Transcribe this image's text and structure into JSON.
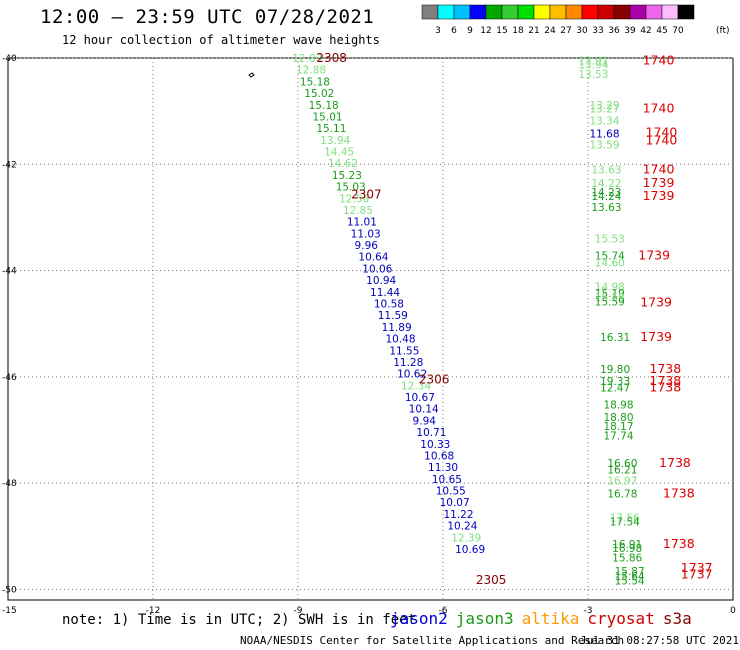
{
  "header": {
    "title": "12:00 – 23:59 UTC 07/28/2021",
    "subtitle": "12 hour collection of altimeter wave heights"
  },
  "legend": {
    "colors": [
      "#7f7f7f",
      "#00ffff",
      "#00bfff",
      "#0000ff",
      "#00a800",
      "#33cc33",
      "#00e000",
      "#ffff00",
      "#ffbf00",
      "#ff8800",
      "#ff0000",
      "#cc0000",
      "#880000",
      "#aa00aa",
      "#ee66ee",
      "#ffbbff",
      "#000000"
    ],
    "labels": [
      "3",
      "6",
      "9",
      "12",
      "15",
      "18",
      "21",
      "24",
      "27",
      "30",
      "33",
      "36",
      "39",
      "42",
      "45",
      "70"
    ],
    "unit": "(ft)"
  },
  "axes": {
    "lat_labels": [
      "-40",
      "-42",
      "-44",
      "-46",
      "-48",
      "-50"
    ],
    "bottom_corner": "-15",
    "lon_labels": [
      "-12",
      "-9",
      "-6",
      "-3",
      "0"
    ]
  },
  "tracks": {
    "west": {
      "time_labels": [
        {
          "text": "2308",
          "lat": -40.0
        },
        {
          "text": "2307",
          "lat": -42.57
        },
        {
          "text": "2306",
          "lat": -46.05
        },
        {
          "text": "2305",
          "lat": -49.82
        }
      ],
      "points": [
        {
          "v": "12.83",
          "lon": -9.12,
          "lat": -40.0,
          "c": "#7fdf7f"
        },
        {
          "v": "12.88",
          "lon": -9.04,
          "lat": -40.22,
          "c": "#7fdf7f"
        },
        {
          "v": "15.18",
          "lon": -8.96,
          "lat": -40.44,
          "c": "#1a9c1a"
        },
        {
          "v": "15.02",
          "lon": -8.87,
          "lat": -40.66,
          "c": "#1a9c1a"
        },
        {
          "v": "15.18",
          "lon": -8.78,
          "lat": -40.88,
          "c": "#1a9c1a"
        },
        {
          "v": "15.01",
          "lon": -8.7,
          "lat": -41.1,
          "c": "#1a9c1a"
        },
        {
          "v": "15.11",
          "lon": -8.62,
          "lat": -41.32,
          "c": "#1a9c1a"
        },
        {
          "v": "13.94",
          "lon": -8.54,
          "lat": -41.54,
          "c": "#7fdf7f"
        },
        {
          "v": "14.45",
          "lon": -8.46,
          "lat": -41.76,
          "c": "#7fdf7f"
        },
        {
          "v": "14.62",
          "lon": -8.38,
          "lat": -41.98,
          "c": "#7fdf7f"
        },
        {
          "v": "15.23",
          "lon": -8.3,
          "lat": -42.2,
          "c": "#1a9c1a"
        },
        {
          "v": "15.03",
          "lon": -8.22,
          "lat": -42.42,
          "c": "#1a9c1a"
        },
        {
          "v": "12.56",
          "lon": -8.15,
          "lat": -42.64,
          "c": "#7fdf7f"
        },
        {
          "v": "12.85",
          "lon": -8.07,
          "lat": -42.86,
          "c": "#7fdf7f"
        },
        {
          "v": "11.01",
          "lon": -7.99,
          "lat": -43.08,
          "c": "#0000bb"
        },
        {
          "v": "11.03",
          "lon": -7.91,
          "lat": -43.3,
          "c": "#0000bb"
        },
        {
          "v": "9.96",
          "lon": -7.83,
          "lat": -43.52,
          "c": "#0000bb"
        },
        {
          "v": "10.64",
          "lon": -7.75,
          "lat": -43.74,
          "c": "#0000bb"
        },
        {
          "v": "10.06",
          "lon": -7.67,
          "lat": -43.96,
          "c": "#0000bb"
        },
        {
          "v": "10.94",
          "lon": -7.59,
          "lat": -44.18,
          "c": "#0000bb"
        },
        {
          "v": "11.44",
          "lon": -7.51,
          "lat": -44.4,
          "c": "#0000bb"
        },
        {
          "v": "10.58",
          "lon": -7.43,
          "lat": -44.62,
          "c": "#0000bb"
        },
        {
          "v": "11.59",
          "lon": -7.35,
          "lat": -44.84,
          "c": "#0000bb"
        },
        {
          "v": "11.89",
          "lon": -7.27,
          "lat": -45.06,
          "c": "#0000bb"
        },
        {
          "v": "10.48",
          "lon": -7.19,
          "lat": -45.28,
          "c": "#0000bb"
        },
        {
          "v": "11.55",
          "lon": -7.11,
          "lat": -45.5,
          "c": "#0000bb"
        },
        {
          "v": "11.28",
          "lon": -7.03,
          "lat": -45.72,
          "c": "#0000bb"
        },
        {
          "v": "10.62",
          "lon": -6.95,
          "lat": -45.94,
          "c": "#0000bb"
        },
        {
          "v": "12.34",
          "lon": -6.87,
          "lat": -46.16,
          "c": "#7fdf7f"
        },
        {
          "v": "10.67",
          "lon": -6.79,
          "lat": -46.38,
          "c": "#0000bb"
        },
        {
          "v": "10.14",
          "lon": -6.71,
          "lat": -46.6,
          "c": "#0000bb"
        },
        {
          "v": "9.94",
          "lon": -6.63,
          "lat": -46.82,
          "c": "#0000bb"
        },
        {
          "v": "10.71",
          "lon": -6.55,
          "lat": -47.04,
          "c": "#0000bb"
        },
        {
          "v": "10.33",
          "lon": -6.47,
          "lat": -47.26,
          "c": "#0000bb"
        },
        {
          "v": "10.68",
          "lon": -6.39,
          "lat": -47.48,
          "c": "#0000bb"
        },
        {
          "v": "11.30",
          "lon": -6.31,
          "lat": -47.7,
          "c": "#0000bb"
        },
        {
          "v": "10.65",
          "lon": -6.23,
          "lat": -47.92,
          "c": "#0000bb"
        },
        {
          "v": "10.55",
          "lon": -6.15,
          "lat": -48.14,
          "c": "#0000bb"
        },
        {
          "v": "10.07",
          "lon": -6.07,
          "lat": -48.36,
          "c": "#0000bb"
        },
        {
          "v": "11.22",
          "lon": -5.99,
          "lat": -48.58,
          "c": "#0000bb"
        },
        {
          "v": "10.24",
          "lon": -5.91,
          "lat": -48.8,
          "c": "#0000bb"
        },
        {
          "v": "12.39",
          "lon": -5.83,
          "lat": -49.02,
          "c": "#7fdf7f"
        },
        {
          "v": "10.69",
          "lon": -5.75,
          "lat": -49.24,
          "c": "#0000bb"
        }
      ]
    },
    "east": {
      "time_labels": [
        {
          "text": "1740",
          "lon": -1.87,
          "lat": -40.05
        },
        {
          "text": "1740",
          "lon": -1.87,
          "lat": -40.95
        },
        {
          "text": "1740",
          "lon": -1.81,
          "lat": -41.4
        },
        {
          "text": "1740",
          "lon": -1.81,
          "lat": -41.55
        },
        {
          "text": "1740",
          "lon": -1.87,
          "lat": -42.1
        },
        {
          "text": "1739",
          "lon": -1.87,
          "lat": -42.35
        },
        {
          "text": "1739",
          "lon": -1.87,
          "lat": -42.6
        },
        {
          "text": "1739",
          "lon": -1.96,
          "lat": -43.72
        },
        {
          "text": "1739",
          "lon": -1.92,
          "lat": -44.6
        },
        {
          "text": "1739",
          "lon": -1.92,
          "lat": -45.25
        },
        {
          "text": "1738",
          "lon": -1.73,
          "lat": -45.85
        },
        {
          "text": "1738",
          "lon": -1.73,
          "lat": -46.08
        },
        {
          "text": "1738",
          "lon": -1.73,
          "lat": -46.2
        },
        {
          "text": "1738",
          "lon": -1.53,
          "lat": -47.62
        },
        {
          "text": "1738",
          "lon": -1.45,
          "lat": -48.2
        },
        {
          "text": "1738",
          "lon": -1.45,
          "lat": -49.15
        },
        {
          "text": "1737",
          "lon": -1.08,
          "lat": -49.6
        },
        {
          "text": "1737",
          "lon": -1.08,
          "lat": -49.72
        }
      ],
      "points": [
        {
          "v": "13.91",
          "lon": -3.2,
          "lat": -40.05,
          "c": "#7fdf7f"
        },
        {
          "v": "13.94",
          "lon": -3.2,
          "lat": -40.12,
          "c": "#7fdf7f"
        },
        {
          "v": "13.53",
          "lon": -3.2,
          "lat": -40.3,
          "c": "#7fdf7f"
        },
        {
          "v": "13.29",
          "lon": -2.97,
          "lat": -40.88,
          "c": "#7fdf7f"
        },
        {
          "v": "13.27",
          "lon": -2.97,
          "lat": -40.95,
          "c": "#7fdf7f"
        },
        {
          "v": "13.34",
          "lon": -2.97,
          "lat": -41.18,
          "c": "#7fdf7f"
        },
        {
          "v": "11.68",
          "lon": -2.97,
          "lat": -41.42,
          "c": "#0000bb"
        },
        {
          "v": "13.59",
          "lon": -2.97,
          "lat": -41.63,
          "c": "#7fdf7f"
        },
        {
          "v": "13.63",
          "lon": -2.93,
          "lat": -42.1,
          "c": "#7fdf7f"
        },
        {
          "v": "14.22",
          "lon": -2.93,
          "lat": -42.35,
          "c": "#7fdf7f"
        },
        {
          "v": "14.23",
          "lon": -2.93,
          "lat": -42.52,
          "c": "#1a9c1a"
        },
        {
          "v": "14.24",
          "lon": -2.93,
          "lat": -42.6,
          "c": "#1a9c1a"
        },
        {
          "v": "13.63",
          "lon": -2.93,
          "lat": -42.8,
          "c": "#1a9c1a"
        },
        {
          "v": "15.53",
          "lon": -2.86,
          "lat": -43.4,
          "c": "#7fdf7f"
        },
        {
          "v": "15.74",
          "lon": -2.86,
          "lat": -43.72,
          "c": "#1a9c1a"
        },
        {
          "v": "14.60",
          "lon": -2.86,
          "lat": -43.85,
          "c": "#7fdf7f"
        },
        {
          "v": "14.98",
          "lon": -2.86,
          "lat": -44.3,
          "c": "#7fdf7f"
        },
        {
          "v": "15.19",
          "lon": -2.86,
          "lat": -44.42,
          "c": "#1a9c1a"
        },
        {
          "v": "15.58",
          "lon": -2.86,
          "lat": -44.5,
          "c": "#7fdf7f"
        },
        {
          "v": "15.59",
          "lon": -2.86,
          "lat": -44.58,
          "c": "#1a9c1a"
        },
        {
          "v": "16.31",
          "lon": -2.75,
          "lat": -45.25,
          "c": "#1a9c1a"
        },
        {
          "v": "19.80",
          "lon": -2.75,
          "lat": -45.85,
          "c": "#1a9c1a"
        },
        {
          "v": "19.33",
          "lon": -2.75,
          "lat": -46.08,
          "c": "#1a9c1a"
        },
        {
          "v": "12.47",
          "lon": -2.75,
          "lat": -46.2,
          "c": "#1a9c1a"
        },
        {
          "v": "18.98",
          "lon": -2.68,
          "lat": -46.52,
          "c": "#1a9c1a"
        },
        {
          "v": "18.80",
          "lon": -2.68,
          "lat": -46.76,
          "c": "#1a9c1a"
        },
        {
          "v": "18.17",
          "lon": -2.68,
          "lat": -46.93,
          "c": "#1a9c1a"
        },
        {
          "v": "17.74",
          "lon": -2.68,
          "lat": -47.1,
          "c": "#1a9c1a"
        },
        {
          "v": "16.60",
          "lon": -2.6,
          "lat": -47.62,
          "c": "#1a9c1a"
        },
        {
          "v": "16.21",
          "lon": -2.6,
          "lat": -47.74,
          "c": "#1a9c1a"
        },
        {
          "v": "16.97",
          "lon": -2.6,
          "lat": -47.95,
          "c": "#7fdf7f"
        },
        {
          "v": "16.78",
          "lon": -2.6,
          "lat": -48.2,
          "c": "#1a9c1a"
        },
        {
          "v": "17.56",
          "lon": -2.55,
          "lat": -48.65,
          "c": "#7fdf7f"
        },
        {
          "v": "17.54",
          "lon": -2.55,
          "lat": -48.72,
          "c": "#1a9c1a"
        },
        {
          "v": "16.91",
          "lon": -2.5,
          "lat": -49.15,
          "c": "#1a9c1a"
        },
        {
          "v": "16.98",
          "lon": -2.5,
          "lat": -49.22,
          "c": "#1a9c1a"
        },
        {
          "v": "15.86",
          "lon": -2.5,
          "lat": -49.4,
          "c": "#1a9c1a"
        },
        {
          "v": "15.87",
          "lon": -2.45,
          "lat": -49.65,
          "c": "#1a9c1a"
        },
        {
          "v": "15.64",
          "lon": -2.45,
          "lat": -49.75,
          "c": "#1a9c1a"
        },
        {
          "v": "15.54",
          "lon": -2.45,
          "lat": -49.83,
          "c": "#1a9c1a"
        }
      ]
    }
  },
  "footer": {
    "note": "note: 1) Time is in UTC; 2) SWH is in feet",
    "satellites": [
      {
        "name": "jason2",
        "color": "#0000dd"
      },
      {
        "name": "jason3",
        "color": "#1a9c1a"
      },
      {
        "name": "altika",
        "color": "#ff9900"
      },
      {
        "name": "cryosat",
        "color": "#cc0000"
      },
      {
        "name": "s3a",
        "color": "#880000"
      }
    ],
    "credit": "NOAA/NESDIS Center for Satellite Applications and Research",
    "timestamp": "Jul 31 08:27:58 UTC 2021"
  }
}
